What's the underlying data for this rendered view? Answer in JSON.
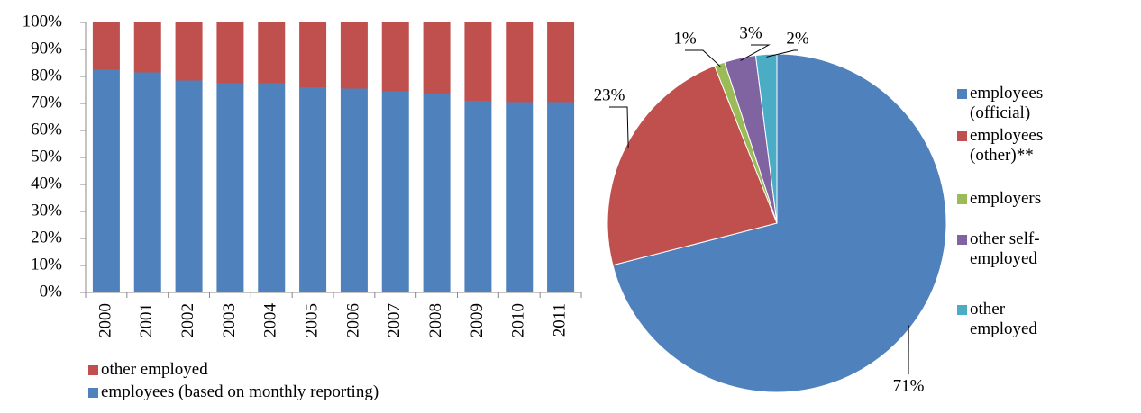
{
  "chart_data": [
    {
      "type": "stacked_bar",
      "categories": [
        "2000",
        "2001",
        "2002",
        "2003",
        "2004",
        "2005",
        "2006",
        "2007",
        "2008",
        "2009",
        "2010",
        "2011"
      ],
      "series": [
        {
          "name": "employees (based on monthly reporting)",
          "color": "#4f81bd",
          "values": [
            82.5,
            81.5,
            78.5,
            77.5,
            77.5,
            76,
            75.5,
            74.5,
            73.5,
            71,
            70.5,
            70.5
          ]
        },
        {
          "name": "other employed",
          "color": "#c0504d",
          "values": [
            17.5,
            18.5,
            21.5,
            22.5,
            22.5,
            24,
            24.5,
            25.5,
            26.5,
            29,
            29.5,
            29.5
          ]
        }
      ],
      "ylim": [
        0,
        100
      ],
      "yticks": [
        {
          "value": 0,
          "label": "0%"
        },
        {
          "value": 10,
          "label": "10%"
        },
        {
          "value": 20,
          "label": "20%"
        },
        {
          "value": 30,
          "label": "30%"
        },
        {
          "value": 40,
          "label": "40%"
        },
        {
          "value": 50,
          "label": "50%"
        },
        {
          "value": 60,
          "label": "60%"
        },
        {
          "value": 70,
          "label": "70%"
        },
        {
          "value": 80,
          "label": "80%"
        },
        {
          "value": 90,
          "label": "90%"
        },
        {
          "value": 100,
          "label": "100%"
        }
      ],
      "legend": "bottom"
    },
    {
      "type": "pie",
      "categories": [
        "employees (official)",
        "employees (other)**",
        "employers",
        "other self-employed",
        "other employed"
      ],
      "values": [
        71,
        23,
        1,
        3,
        2
      ],
      "value_labels": [
        "71%",
        "23%",
        "1%",
        "3%",
        "2%"
      ],
      "colors": [
        "#4f81bd",
        "#c0504d",
        "#9bbb59",
        "#8064a2",
        "#4bacc6"
      ],
      "legend": "right"
    }
  ]
}
